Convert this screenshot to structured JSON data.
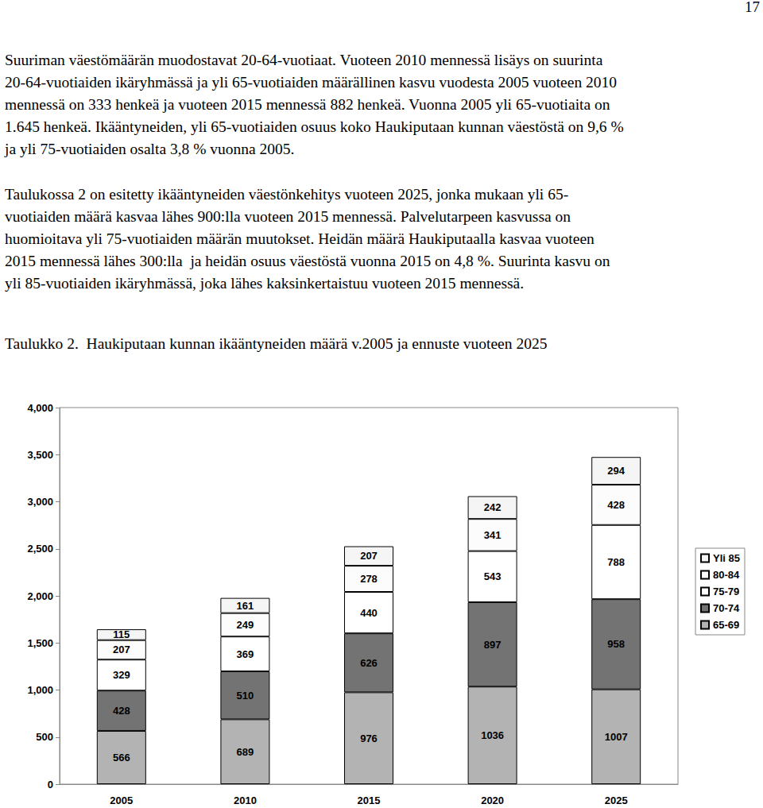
{
  "page": {
    "page_number": "17",
    "paragraphs": [
      [
        "Suuriman väestömäärän muodostavat 20-64-vuotiaat. Vuoteen 2010 mennessä lisäys on suurinta",
        "20-64-vuotiaiden ikäryhmässä ja yli 65-vuotiaiden määrällinen kasvu vuodesta 2005 vuoteen 2010",
        "mennessä on 333 henkeä ja vuoteen 2015 mennessä 882 henkeä. Vuonna 2005 yli 65-vuotiaita on",
        "1.645 henkeä. Ikääntyneiden, yli 65-vuotiaiden osuus koko Haukiputaan kunnan väestöstä on 9,6 %",
        "ja yli 75-vuotiaiden osalta 3,8 % vuonna 2005."
      ],
      [
        "Taulukossa 2 on esitetty ikääntyneiden väestönkehitys vuoteen 2025, jonka mukaan yli 65-",
        "vuotiaiden määrä kasvaa lähes 900:lla vuoteen 2015 mennessä. Palvelutarpeen kasvussa on",
        "huomioitava yli 75-vuotiaiden määrän muutokset. Heidän määrä Haukiputaalla kasvaa vuoteen",
        "2015 mennessä lähes 300:lla  ja heidän osuus väestöstä vuonna 2015 on 4,8 %. Suurinta kasvu on",
        "yli 85-vuotiaiden ikäryhmässä, joka lähes kaksinkertaistuu vuoteen 2015 mennessä."
      ]
    ],
    "caption": "Taulukko 2.  Haukiputaan kunnan ikääntyneiden määrä v.2005 ja ennuste vuoteen 2025"
  },
  "chart_data": {
    "type": "bar",
    "stacked": true,
    "data_labels": true,
    "grid": false,
    "legend": "right",
    "categories": [
      "2005",
      "2010",
      "2015",
      "2020",
      "2025"
    ],
    "ylim": [
      0,
      4000
    ],
    "yticks": [
      0,
      500,
      1000,
      1500,
      2000,
      2500,
      3000,
      3500,
      4000
    ],
    "series": [
      {
        "name": "65-69",
        "color": "#b3b3b3",
        "values": [
          566,
          689,
          976,
          1036,
          1007
        ]
      },
      {
        "name": "70-74",
        "color": "#737373",
        "values": [
          428,
          510,
          626,
          897,
          958
        ]
      },
      {
        "name": "75-79",
        "color": "#ffffff",
        "values": [
          329,
          369,
          440,
          543,
          788
        ]
      },
      {
        "name": "80-84",
        "color": "#fcfcfc",
        "values": [
          207,
          249,
          278,
          341,
          428
        ]
      },
      {
        "name": "Yli 85",
        "color": "#f5f5f5",
        "values": [
          115,
          161,
          207,
          242,
          294
        ]
      }
    ]
  }
}
